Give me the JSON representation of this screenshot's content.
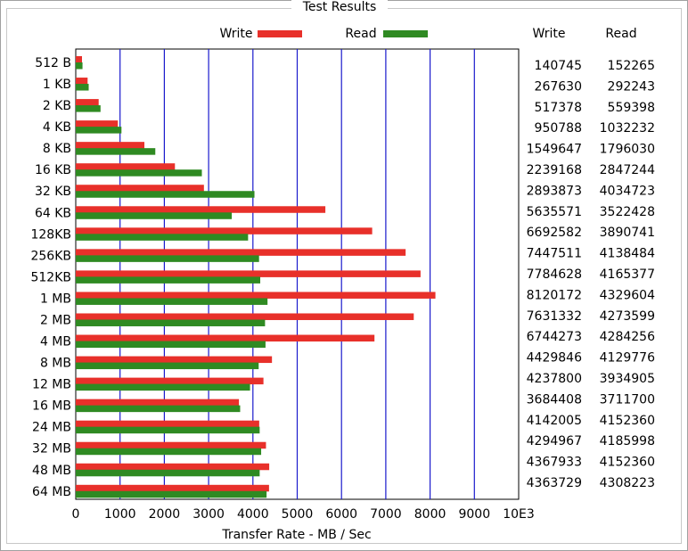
{
  "chart_data": {
    "type": "bar",
    "orientation": "horizontal",
    "title": "Test Results",
    "xlabel": "Transfer Rate - MB / Sec",
    "categories": [
      "512 B",
      "1 KB",
      "2 KB",
      "4 KB",
      "8 KB",
      "16 KB",
      "32 KB",
      "64 KB",
      "128KB",
      "256KB",
      "512KB",
      "1 MB",
      "2 MB",
      "4 MB",
      "8 MB",
      "12 MB",
      "16 MB",
      "24 MB",
      "32 MB",
      "48 MB",
      "64 MB"
    ],
    "series": [
      {
        "name": "Write",
        "color": "#e8302a",
        "values": [
          140.745,
          267.63,
          517.378,
          950.788,
          1549.647,
          2239.168,
          2893.873,
          5635.571,
          6692.582,
          7447.511,
          7784.628,
          8120.172,
          7631.332,
          6744.273,
          4429.846,
          4237.8,
          3684.408,
          4142.005,
          4294.967,
          4367.933,
          4363.729
        ],
        "value_labels": [
          "140745",
          "267630",
          "517378",
          "950788",
          "1549647",
          "2239168",
          "2893873",
          "5635571",
          "6692582",
          "7447511",
          "7784628",
          "8120172",
          "7631332",
          "6744273",
          "4429846",
          "4237800",
          "3684408",
          "4142005",
          "4294967",
          "4367933",
          "4363729"
        ]
      },
      {
        "name": "Read",
        "color": "#2f8a22",
        "values": [
          152.265,
          292.243,
          559.398,
          1032.232,
          1796.03,
          2847.244,
          4034.723,
          3522.428,
          3890.741,
          4138.484,
          4165.377,
          4329.604,
          4273.599,
          4284.256,
          4129.776,
          3934.905,
          3711.7,
          4152.36,
          4185.998,
          4152.36,
          4308.223
        ],
        "value_labels": [
          "152265",
          "292243",
          "559398",
          "1032232",
          "1796030",
          "2847244",
          "4034723",
          "3522428",
          "3890741",
          "4138484",
          "4165377",
          "4329604",
          "4273599",
          "4284256",
          "4129776",
          "3934905",
          "3711700",
          "4152360",
          "4185998",
          "4152360",
          "4308223"
        ]
      }
    ],
    "xlim": [
      0,
      10000
    ],
    "xticks": [
      0,
      1000,
      2000,
      3000,
      4000,
      5000,
      6000,
      7000,
      8000,
      9000,
      {
        "value": 10000,
        "label": "10E3"
      }
    ],
    "grid": true,
    "grid_color": "#1a1acc"
  }
}
